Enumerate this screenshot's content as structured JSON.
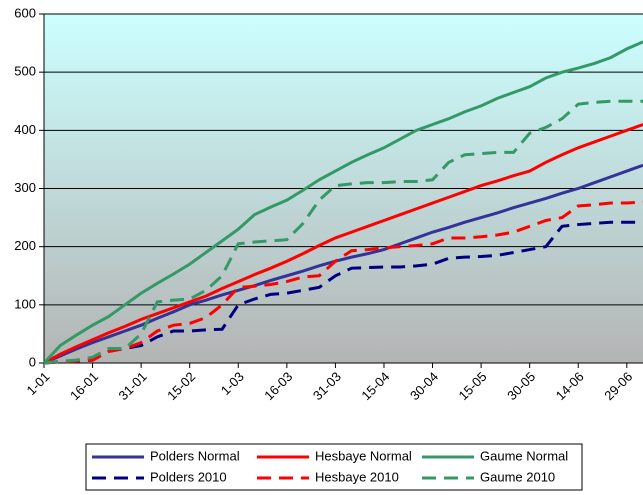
{
  "chart_data": {
    "type": "line",
    "categories": [
      "1-01",
      null,
      null,
      "16-01",
      null,
      null,
      "31-01",
      null,
      null,
      "15-02",
      null,
      null,
      "1-03",
      null,
      null,
      "16-03",
      null,
      null,
      "31-03",
      null,
      null,
      "15-04",
      null,
      null,
      "30-04",
      null,
      null,
      "15-05",
      null,
      null,
      "30-05",
      null,
      null,
      "14-06",
      null,
      null,
      "29-06",
      null
    ],
    "series": [
      {
        "name": "Polders Normal",
        "color": "#333399",
        "dashed": false,
        "values": [
          0,
          12,
          24,
          35,
          45,
          55,
          65,
          77,
          88,
          100,
          108,
          117,
          125,
          133,
          142,
          150,
          158,
          167,
          175,
          182,
          188,
          195,
          205,
          215,
          225,
          233,
          242,
          250,
          258,
          267,
          275,
          283,
          292,
          300,
          310,
          320,
          330,
          340
        ]
      },
      {
        "name": "Hesbaye Normal",
        "color": "#ff0000",
        "dashed": false,
        "values": [
          0,
          15,
          28,
          40,
          52,
          63,
          75,
          85,
          95,
          105,
          115,
          128,
          140,
          152,
          163,
          175,
          188,
          202,
          215,
          225,
          235,
          245,
          255,
          265,
          275,
          285,
          295,
          305,
          313,
          322,
          330,
          345,
          358,
          370,
          380,
          390,
          400,
          410
        ]
      },
      {
        "name": "Gaume Normal",
        "color": "#339966",
        "dashed": false,
        "values": [
          0,
          30,
          48,
          65,
          80,
          100,
          120,
          137,
          153,
          170,
          190,
          210,
          230,
          255,
          268,
          280,
          297,
          315,
          330,
          345,
          358,
          370,
          385,
          400,
          410,
          420,
          432,
          442,
          455,
          465,
          475,
          490,
          500,
          507,
          515,
          525,
          540,
          552
        ]
      },
      {
        "name": "Polders 2010",
        "color": "#000080",
        "dashed": true,
        "values": [
          0,
          2,
          3,
          5,
          20,
          25,
          30,
          45,
          55,
          55,
          57,
          58,
          100,
          110,
          118,
          120,
          125,
          130,
          150,
          163,
          164,
          165,
          165,
          167,
          170,
          180,
          182,
          183,
          185,
          190,
          195,
          200,
          235,
          238,
          240,
          242,
          242,
          242
        ]
      },
      {
        "name": "Hesbaye 2010",
        "color": "#ff0000",
        "dashed": true,
        "values": [
          0,
          2,
          3,
          5,
          20,
          25,
          35,
          55,
          65,
          68,
          78,
          100,
          130,
          132,
          135,
          140,
          148,
          150,
          175,
          193,
          195,
          198,
          200,
          202,
          205,
          215,
          215,
          217,
          220,
          225,
          235,
          245,
          250,
          270,
          272,
          275,
          275,
          277
        ]
      },
      {
        "name": "Gaume 2010",
        "color": "#339966",
        "dashed": true,
        "values": [
          0,
          3,
          5,
          10,
          25,
          25,
          50,
          105,
          108,
          110,
          125,
          150,
          205,
          208,
          210,
          212,
          240,
          280,
          305,
          308,
          310,
          310,
          312,
          312,
          315,
          345,
          358,
          360,
          362,
          362,
          395,
          405,
          420,
          445,
          448,
          450,
          450,
          450
        ]
      }
    ],
    "ylim": [
      0,
      600
    ],
    "yticks": [
      0,
      100,
      200,
      300,
      400,
      500,
      600
    ],
    "grid": true,
    "legend": "bottom"
  }
}
